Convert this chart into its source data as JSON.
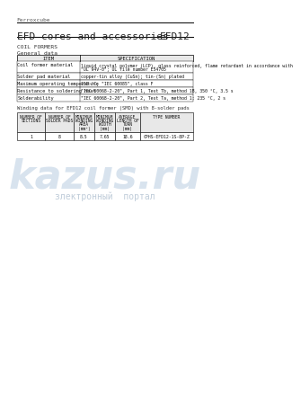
{
  "page_bg": "#ffffff",
  "header_line_color": "#000000",
  "top_label": "Ferroxcube",
  "title_left": "EFD cores and accessories",
  "title_right": "EFD12",
  "section_title": "COIL FORMERS",
  "subsection": "General data",
  "general_table_headers": [
    "ITEM",
    "SPECIFICATION"
  ],
  "general_table_rows": [
    [
      "Coil former material",
      "liquid crystal polymer (LCP), glass reinforced, flame retardant in accordance with\n\"UL 94V-0\"; UL file number E54705"
    ],
    [
      "Solder pad material",
      "copper-tin alloy (CuSn); tin-(Sn) plated"
    ],
    [
      "Maximum operating temperature",
      "155 °C; \"IEC 60085\", class F"
    ],
    [
      "Resistance to soldering heat",
      "\"IEC 60068-2-20\", Part 1, Test Tb, method 1B, 350 °C, 3.5 s"
    ],
    [
      "Solderability",
      "\"IEC 60068-2-20\", Part 2, Test Ta, method 1: 235 °C, 2 s"
    ]
  ],
  "winding_caption": "Winding data for EFD12 coil former (SMD) with 8-solder pads",
  "winding_table_headers": [
    "NUMBER OF\nSECTIONS",
    "NUMBER OF\nSOLDER PADS",
    "MINIMUM\nWINDING\nAREA\n(mm²)",
    "MINIMUM\nWINDING\nWIDTH\n(mm)",
    "AVERAGE\nLENGTH OF\nTURN\n(mm)",
    "TYPE NUMBER"
  ],
  "winding_table_row": [
    "1",
    "8",
    "8.5",
    "7.65",
    "18.6",
    "CPHS-EFD12-1S-8P-Z"
  ],
  "watermark_text": "kazus.ru",
  "watermark_subtext": "злектронный  портал",
  "font_family": "monospace"
}
